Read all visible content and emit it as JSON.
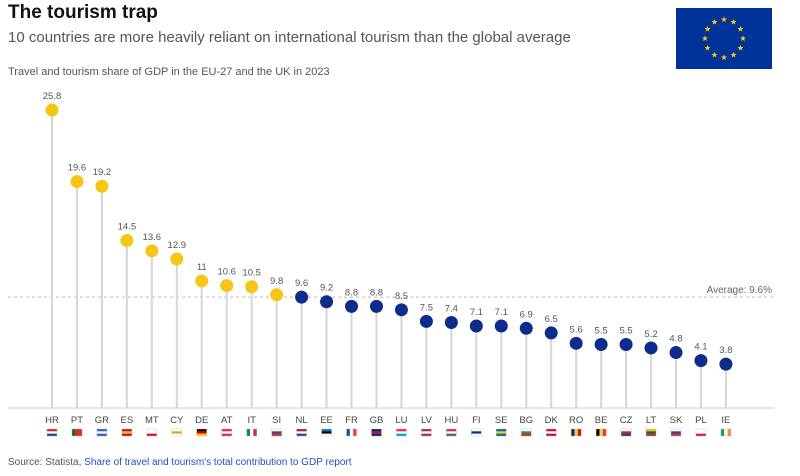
{
  "header": {
    "title": "The tourism trap",
    "subtitle": "10 countries are more heavily reliant on international tourism than the global average",
    "description": "Travel and tourism share of GDP in the EU-27 and the UK in 2023"
  },
  "flag": {
    "icon": "eu-flag-icon",
    "background": "#003399",
    "stars": "#ffcc00"
  },
  "footer": {
    "source_prefix": "Source: Statista,",
    "source_link": "Share of travel and tourism's total contribution to GDP report"
  },
  "colors": {
    "above": "#f5c518",
    "below": "#0d2c8c",
    "stem": "#d6d6d6",
    "axis": "#cccccc",
    "average_line": "#bbbbbb"
  },
  "chart_data": {
    "type": "scatter",
    "title": "Travel and tourism share of GDP in the EU-27 and the UK in 2023",
    "xlabel": "",
    "ylabel": "",
    "ylim": [
      0,
      27
    ],
    "grid": false,
    "categories": [
      "HR",
      "PT",
      "GR",
      "ES",
      "MT",
      "CY",
      "DE",
      "AT",
      "IT",
      "SI",
      "NL",
      "EE",
      "FR",
      "GB",
      "LU",
      "LV",
      "HU",
      "FI",
      "SE",
      "BG",
      "DK",
      "RO",
      "BE",
      "CZ",
      "LT",
      "SK",
      "PL",
      "IE"
    ],
    "values": [
      25.8,
      19.6,
      19.2,
      14.5,
      13.6,
      12.9,
      11,
      10.6,
      10.5,
      9.8,
      9.6,
      9.2,
      8.8,
      8.8,
      8.5,
      7.5,
      7.4,
      7.1,
      7.1,
      6.9,
      6.5,
      5.6,
      5.5,
      5.5,
      5.2,
      4.8,
      4.1,
      3.8
    ],
    "value_labels": [
      "25.8",
      "19.6",
      "19.2",
      "14.5",
      "13.6",
      "12.9",
      "11",
      "10.6",
      "10.5",
      "9.8",
      "9.6",
      "9.2",
      "8.8",
      "8.8",
      "8.5",
      "7.5",
      "7.4",
      "7.1",
      "7.1",
      "6.9",
      "6.5",
      "5.6",
      "5.5",
      "5.5",
      "5.2",
      "4.8",
      "4.1",
      "3.8"
    ],
    "reference_line": {
      "value": 9.6,
      "label": "Average: 9.6%"
    }
  }
}
